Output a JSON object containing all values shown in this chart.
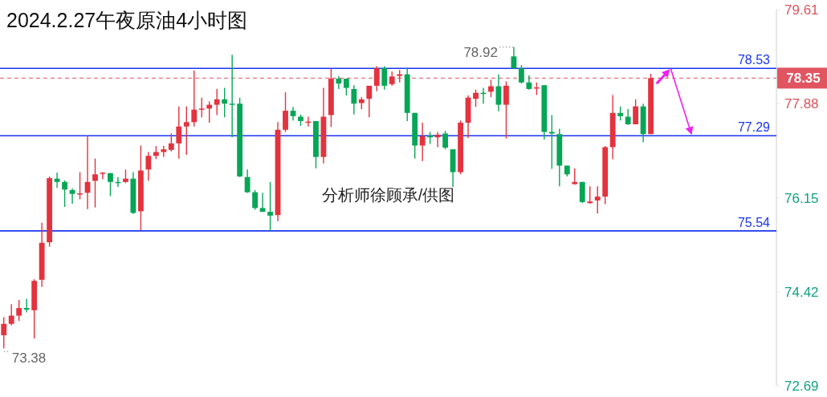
{
  "chart_data": {
    "type": "candlestick",
    "title": "2024.2.27午夜原油4小时图",
    "categories": [
      null,
      null,
      null,
      null,
      null,
      null,
      null,
      null,
      null,
      null,
      null,
      null,
      null,
      null,
      null,
      null,
      null,
      null,
      null,
      null,
      null,
      null,
      null,
      null,
      null,
      null,
      null,
      null,
      null,
      null,
      null,
      null,
      null,
      null,
      null,
      null,
      null,
      null,
      null,
      null,
      null,
      null,
      null,
      null,
      null,
      null,
      null,
      null,
      null,
      null,
      null,
      null,
      null,
      null,
      null,
      null,
      null,
      null,
      null,
      null,
      null,
      null,
      null,
      null,
      null,
      null,
      null,
      null,
      null,
      null,
      null,
      null,
      null,
      null,
      null,
      null,
      null,
      null,
      null,
      null,
      null,
      null,
      null,
      null,
      null,
      null,
      null,
      null,
      null,
      null,
      null,
      null,
      null,
      null,
      null,
      null,
      null,
      null,
      null,
      null,
      null,
      null
    ],
    "ohlc": [
      [
        73.62,
        73.95,
        73.38,
        73.83
      ],
      [
        73.83,
        74.19,
        73.8,
        73.98
      ],
      [
        73.98,
        74.27,
        73.88,
        74.12
      ],
      [
        74.12,
        74.29,
        74.04,
        74.09
      ],
      [
        74.08,
        74.65,
        73.56,
        74.62
      ],
      [
        74.64,
        75.69,
        74.51,
        75.32
      ],
      [
        75.33,
        76.54,
        75.25,
        76.51
      ],
      [
        76.5,
        76.61,
        76.33,
        76.44
      ],
      [
        76.44,
        76.47,
        75.98,
        76.3
      ],
      [
        76.29,
        76.32,
        76.04,
        76.22
      ],
      [
        76.22,
        76.62,
        76.12,
        76.23
      ],
      [
        76.24,
        77.29,
        75.94,
        76.44
      ],
      [
        76.46,
        76.87,
        75.97,
        76.58
      ],
      [
        76.6,
        76.62,
        76.49,
        76.61
      ],
      [
        76.6,
        76.61,
        76.18,
        76.44
      ],
      [
        76.44,
        76.53,
        76.35,
        76.43
      ],
      [
        76.44,
        76.67,
        76.42,
        76.5
      ],
      [
        76.5,
        76.62,
        75.85,
        75.87
      ],
      [
        75.9,
        77.11,
        75.55,
        76.65
      ],
      [
        76.67,
        76.99,
        76.46,
        76.92
      ],
      [
        76.92,
        77.1,
        76.86,
        76.99
      ],
      [
        76.99,
        77.1,
        76.9,
        77.04
      ],
      [
        77.03,
        77.33,
        77.0,
        77.15
      ],
      [
        77.15,
        77.83,
        76.87,
        77.46
      ],
      [
        77.46,
        77.83,
        76.94,
        77.54
      ],
      [
        77.54,
        78.49,
        77.46,
        77.77
      ],
      [
        77.78,
        77.99,
        77.63,
        77.79
      ],
      [
        77.79,
        77.92,
        77.53,
        77.86
      ],
      [
        77.86,
        78.15,
        77.67,
        77.96
      ],
      [
        77.96,
        78.17,
        77.63,
        77.88
      ],
      [
        77.88,
        78.78,
        77.26,
        77.86
      ],
      [
        77.88,
        77.99,
        76.53,
        76.54
      ],
      [
        76.53,
        76.67,
        76.24,
        76.25
      ],
      [
        76.25,
        76.29,
        75.93,
        75.96
      ],
      [
        75.96,
        76.24,
        75.89,
        75.89
      ],
      [
        75.89,
        76.44,
        75.54,
        75.82
      ],
      [
        75.83,
        77.54,
        75.72,
        77.4
      ],
      [
        77.4,
        78.09,
        77.36,
        77.75
      ],
      [
        77.75,
        77.82,
        77.57,
        77.65
      ],
      [
        77.64,
        77.68,
        77.47,
        77.56
      ],
      [
        77.54,
        77.64,
        77.46,
        77.55
      ],
      [
        77.56,
        77.56,
        76.69,
        76.9
      ],
      [
        76.9,
        78.17,
        76.78,
        77.64
      ],
      [
        77.67,
        78.53,
        77.45,
        78.34
      ],
      [
        78.34,
        78.39,
        78.15,
        78.25
      ],
      [
        78.34,
        78.34,
        78.03,
        78.17
      ],
      [
        78.15,
        78.22,
        77.68,
        77.88
      ],
      [
        77.89,
        78.0,
        77.78,
        77.96
      ],
      [
        77.97,
        78.21,
        77.63,
        78.21
      ],
      [
        78.21,
        78.57,
        78.11,
        78.53
      ],
      [
        78.53,
        78.57,
        78.14,
        78.21
      ],
      [
        78.24,
        78.47,
        78.21,
        78.38
      ],
      [
        78.39,
        78.5,
        78.27,
        78.42
      ],
      [
        78.42,
        78.54,
        77.56,
        77.71
      ],
      [
        77.71,
        77.71,
        76.87,
        77.11
      ],
      [
        77.11,
        77.53,
        76.82,
        77.28
      ],
      [
        77.29,
        77.36,
        77.14,
        77.26
      ],
      [
        77.26,
        77.36,
        77.08,
        77.31
      ],
      [
        77.33,
        77.38,
        77.04,
        77.07
      ],
      [
        77.04,
        77.04,
        76.35,
        76.62
      ],
      [
        76.62,
        77.57,
        76.58,
        77.53
      ],
      [
        77.53,
        78.03,
        77.25,
        77.99
      ],
      [
        77.97,
        78.14,
        77.82,
        78.08
      ],
      [
        78.08,
        78.17,
        77.88,
        78.06
      ],
      [
        78.1,
        78.32,
        78.0,
        78.2
      ],
      [
        78.2,
        78.42,
        77.74,
        77.86
      ],
      [
        77.86,
        78.29,
        77.24,
        78.21
      ],
      [
        78.75,
        78.92,
        78.53,
        78.53
      ],
      [
        78.53,
        78.59,
        78.25,
        78.27
      ],
      [
        78.27,
        78.4,
        78.14,
        78.15
      ],
      [
        78.17,
        78.27,
        78.04,
        78.18
      ],
      [
        78.22,
        78.22,
        77.22,
        77.36
      ],
      [
        77.36,
        77.67,
        76.68,
        77.33
      ],
      [
        77.32,
        77.42,
        76.36,
        76.74
      ],
      [
        76.74,
        76.74,
        76.54,
        76.58
      ],
      [
        76.4,
        76.69,
        76.39,
        76.44
      ],
      [
        76.44,
        76.44,
        76.05,
        76.07
      ],
      [
        76.05,
        76.36,
        76.04,
        76.08
      ],
      [
        76.1,
        76.36,
        75.86,
        76.17
      ],
      [
        76.17,
        77.1,
        76.03,
        77.08
      ],
      [
        77.08,
        78.04,
        76.86,
        77.71
      ],
      [
        77.71,
        77.83,
        77.57,
        77.65
      ],
      [
        77.64,
        77.78,
        77.49,
        77.5
      ],
      [
        77.5,
        77.96,
        77.5,
        77.83
      ],
      [
        77.83,
        77.88,
        77.17,
        77.32
      ],
      [
        77.32,
        78.43,
        77.32,
        78.35
      ],
      null,
      null,
      null,
      null,
      null,
      null,
      null,
      null,
      null,
      null,
      null,
      null,
      null,
      null,
      null,
      null
    ],
    "ylim": [
      72.69,
      79.61
    ],
    "yticks": [
      72.69,
      74.42,
      76.15,
      77.88,
      79.61
    ],
    "tick_labels": "y",
    "ref_lines": [
      {
        "axis": "y",
        "value": 78.53,
        "label": "78.53",
        "color": "#1a35f0"
      },
      {
        "axis": "y",
        "value": 77.29,
        "label": "77.29",
        "color": "#1a35f0"
      },
      {
        "axis": "y",
        "value": 75.54,
        "label": "75.54",
        "color": "#1a35f0"
      },
      {
        "axis": "y",
        "value": 78.35,
        "label": "78.35",
        "color": "#e05560",
        "line_style": "dashed"
      }
    ],
    "annotations": [
      "78.92",
      "73.38",
      "分析师徐顾承/供图"
    ]
  }
}
